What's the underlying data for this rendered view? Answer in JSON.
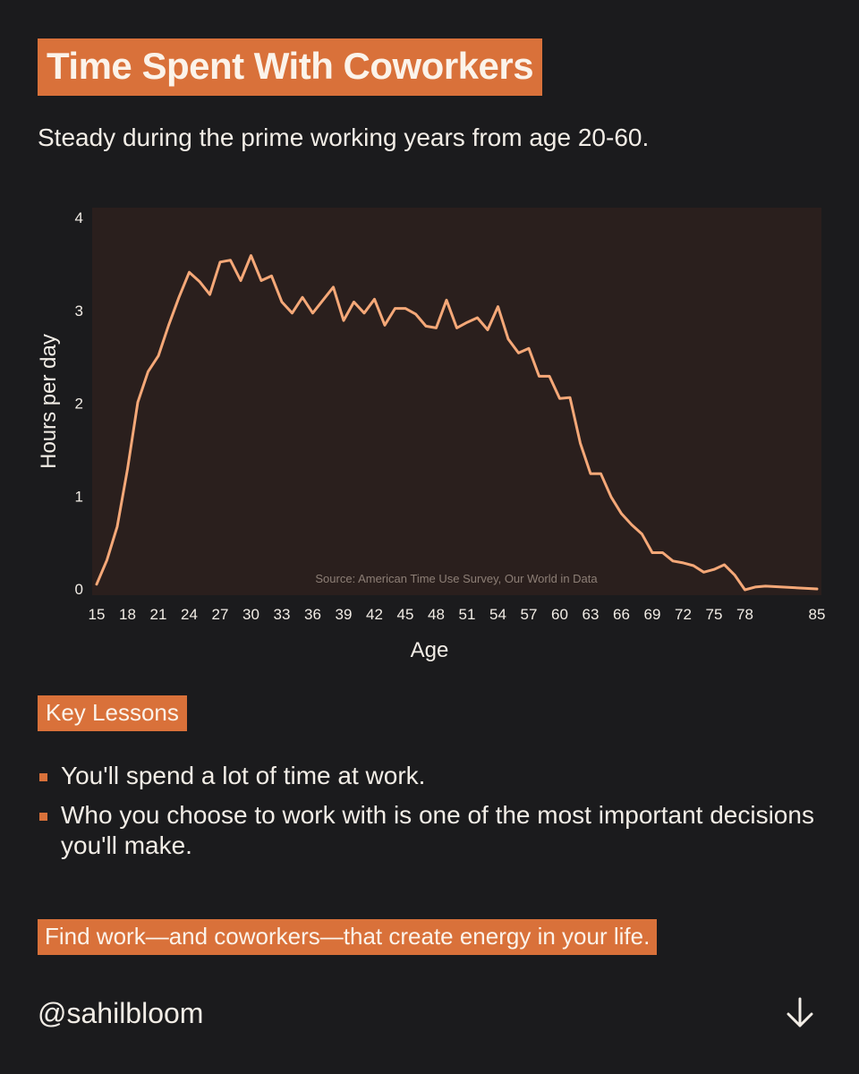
{
  "title": "Time Spent With Coworkers",
  "subtitle": "Steady during the prime working years from age 20-60.",
  "chart_data": {
    "type": "line",
    "xlabel": "Age",
    "ylabel": "Hours per day",
    "xlim": [
      15,
      85
    ],
    "ylim": [
      0,
      4
    ],
    "x_ticks": [
      15,
      18,
      21,
      24,
      27,
      30,
      33,
      36,
      39,
      42,
      45,
      48,
      51,
      54,
      57,
      60,
      63,
      66,
      69,
      72,
      75,
      78,
      85
    ],
    "y_ticks": [
      0,
      1,
      2,
      3,
      4
    ],
    "source": "Source: American Time Use Survey, Our World in Data",
    "line_color": "#f5a878",
    "series": [
      {
        "x": [
          15,
          16,
          17,
          18,
          19,
          20,
          21,
          22,
          23,
          24,
          25,
          26,
          27,
          28,
          29,
          30,
          31,
          32,
          33,
          34,
          35,
          36,
          37,
          38,
          39,
          40,
          41,
          42,
          43,
          44,
          45,
          46,
          47,
          48,
          49,
          50,
          51,
          52,
          53,
          54,
          55,
          56,
          57,
          58,
          59,
          60,
          61,
          62,
          63,
          64,
          65,
          66,
          67,
          68,
          69,
          70,
          71,
          72,
          73,
          74,
          75,
          76,
          77,
          78,
          79,
          80,
          85
        ],
        "y": [
          0.06,
          0.32,
          0.68,
          1.3,
          2.02,
          2.35,
          2.52,
          2.85,
          3.15,
          3.42,
          3.32,
          3.18,
          3.53,
          3.55,
          3.33,
          3.6,
          3.33,
          3.38,
          3.1,
          2.98,
          3.15,
          2.98,
          3.12,
          3.26,
          2.9,
          3.1,
          2.98,
          3.13,
          2.85,
          3.03,
          3.03,
          2.97,
          2.84,
          2.82,
          3.12,
          2.82,
          2.88,
          2.93,
          2.8,
          3.05,
          2.7,
          2.55,
          2.6,
          2.3,
          2.3,
          2.06,
          2.07,
          1.58,
          1.25,
          1.25,
          1.0,
          0.82,
          0.7,
          0.6,
          0.4,
          0.4,
          0.31,
          0.29,
          0.26,
          0.19,
          0.22,
          0.27,
          0.16,
          0.0,
          0.03,
          0.04,
          0.01
        ]
      }
    ]
  },
  "lessons": {
    "heading": "Key Lessons",
    "items": [
      "You'll spend a lot of time at work.",
      "Who you choose to work with is one of the most important decisions you'll make."
    ]
  },
  "cta": "Find work—and coworkers—that create energy in your life.",
  "handle": "@sahilbloom",
  "colors": {
    "accent": "#d9713a",
    "background": "#1b1b1d",
    "plot_background": "#2a1f1d"
  },
  "icons": {
    "next": "arrow-down-icon"
  }
}
